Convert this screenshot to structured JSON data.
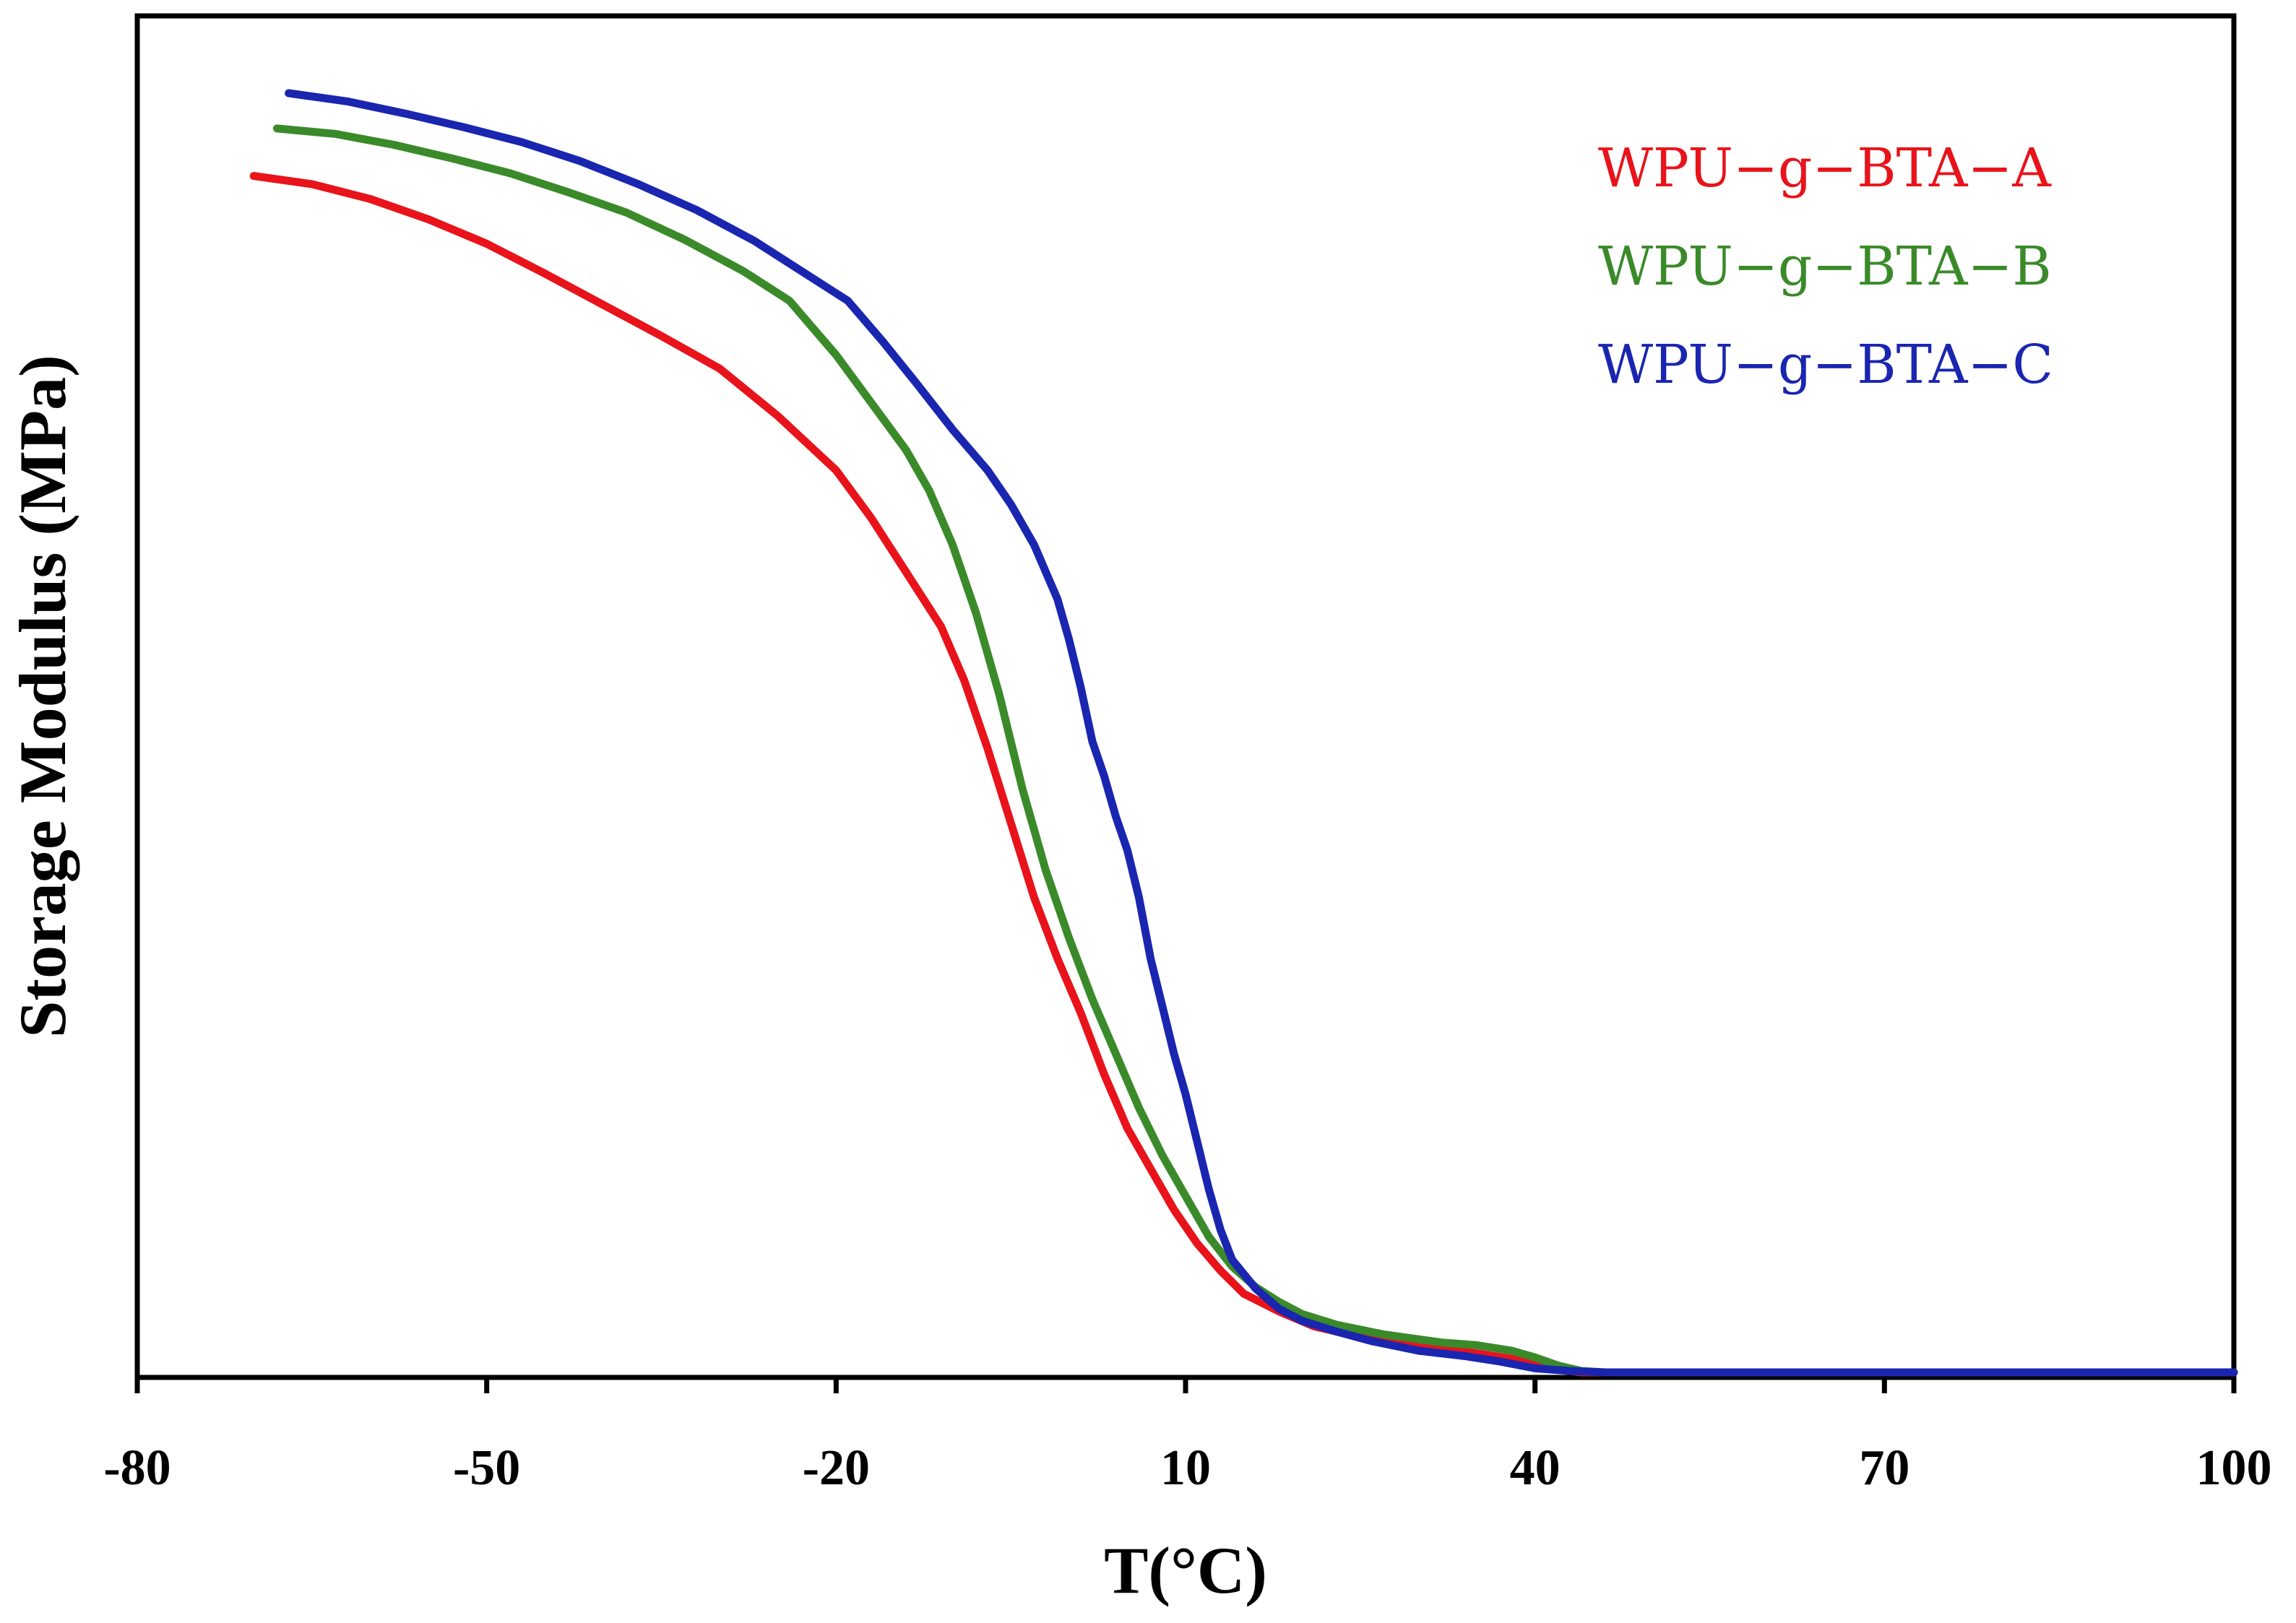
{
  "chart_data": {
    "type": "line",
    "title": "",
    "xlabel": "T(°C)",
    "ylabel": "Storage Modulus (MPa)",
    "xlim": [
      -80,
      100
    ],
    "ylim": [
      0,
      100
    ],
    "xticks": [
      -80,
      -50,
      -20,
      10,
      40,
      70,
      100
    ],
    "xtick_labels": [
      "-80",
      "-50",
      "-20",
      "10",
      "40",
      "70",
      "100"
    ],
    "y_tick_labels_shown": false,
    "grid": false,
    "legend_position": "top-right",
    "series": [
      {
        "name": "WPU−g−BTA−A",
        "color": "#e8131b",
        "points": [
          [
            -70,
            88.2
          ],
          [
            -65,
            87.6
          ],
          [
            -60,
            86.5
          ],
          [
            -55,
            85.0
          ],
          [
            -50,
            83.2
          ],
          [
            -45,
            81.0
          ],
          [
            -40,
            78.7
          ],
          [
            -35,
            76.4
          ],
          [
            -30,
            74.0
          ],
          [
            -25,
            70.5
          ],
          [
            -20,
            66.5
          ],
          [
            -17,
            63.0
          ],
          [
            -14,
            59.0
          ],
          [
            -11,
            55.0
          ],
          [
            -9,
            51.0
          ],
          [
            -7,
            46.0
          ],
          [
            -5,
            40.5
          ],
          [
            -3,
            35.0
          ],
          [
            -1,
            30.5
          ],
          [
            1,
            26.5
          ],
          [
            3,
            22.0
          ],
          [
            5,
            18.0
          ],
          [
            7,
            15.0
          ],
          [
            9,
            12.0
          ],
          [
            11,
            9.5
          ],
          [
            13,
            7.5
          ],
          [
            15,
            5.8
          ],
          [
            18,
            4.5
          ],
          [
            21,
            3.4
          ],
          [
            25,
            2.6
          ],
          [
            30,
            1.9
          ],
          [
            35,
            1.4
          ],
          [
            38,
            1.0
          ],
          [
            40,
            0.6
          ],
          [
            42,
            0.2
          ],
          [
            44,
            0.0
          ],
          [
            60,
            0.0
          ],
          [
            80,
            0.0
          ],
          [
            100,
            0.0
          ]
        ]
      },
      {
        "name": "WPU−g−BTA−B",
        "color": "#3a8a2a",
        "points": [
          [
            -68,
            91.7
          ],
          [
            -63,
            91.3
          ],
          [
            -58,
            90.5
          ],
          [
            -53,
            89.5
          ],
          [
            -48,
            88.4
          ],
          [
            -43,
            87.0
          ],
          [
            -38,
            85.5
          ],
          [
            -33,
            83.5
          ],
          [
            -28,
            81.2
          ],
          [
            -24,
            79.0
          ],
          [
            -20,
            75.0
          ],
          [
            -17,
            71.5
          ],
          [
            -14,
            68.0
          ],
          [
            -12,
            65.0
          ],
          [
            -10,
            61.0
          ],
          [
            -8,
            56.0
          ],
          [
            -6,
            50.0
          ],
          [
            -4,
            43.0
          ],
          [
            -2,
            37.0
          ],
          [
            0,
            32.0
          ],
          [
            2,
            27.5
          ],
          [
            4,
            23.5
          ],
          [
            6,
            19.5
          ],
          [
            8,
            16.0
          ],
          [
            10,
            13.0
          ],
          [
            12,
            10.0
          ],
          [
            14,
            7.8
          ],
          [
            16,
            6.3
          ],
          [
            18,
            5.2
          ],
          [
            20,
            4.3
          ],
          [
            23,
            3.5
          ],
          [
            27,
            2.8
          ],
          [
            32,
            2.2
          ],
          [
            35,
            2.0
          ],
          [
            38,
            1.6
          ],
          [
            40,
            1.1
          ],
          [
            42,
            0.5
          ],
          [
            44,
            0.1
          ],
          [
            46,
            0.0
          ],
          [
            60,
            0.0
          ],
          [
            80,
            0.0
          ],
          [
            100,
            0.0
          ]
        ]
      },
      {
        "name": "WPU−g−BTA−C",
        "color": "#1a25b0",
        "points": [
          [
            -67,
            94.3
          ],
          [
            -62,
            93.7
          ],
          [
            -57,
            92.8
          ],
          [
            -52,
            91.8
          ],
          [
            -47,
            90.7
          ],
          [
            -42,
            89.3
          ],
          [
            -37,
            87.6
          ],
          [
            -32,
            85.7
          ],
          [
            -27,
            83.4
          ],
          [
            -23,
            81.2
          ],
          [
            -19,
            79.0
          ],
          [
            -16,
            76.0
          ],
          [
            -13,
            72.8
          ],
          [
            -10,
            69.5
          ],
          [
            -7,
            66.5
          ],
          [
            -5,
            64.0
          ],
          [
            -3,
            61.0
          ],
          [
            -1,
            57.0
          ],
          [
            0,
            54.0
          ],
          [
            1,
            50.5
          ],
          [
            2,
            46.5
          ],
          [
            3,
            44.0
          ],
          [
            4,
            41.0
          ],
          [
            5,
            38.5
          ],
          [
            6,
            35.0
          ],
          [
            7,
            30.5
          ],
          [
            8,
            27.0
          ],
          [
            9,
            23.5
          ],
          [
            10,
            20.5
          ],
          [
            11,
            17.0
          ],
          [
            12,
            13.5
          ],
          [
            13,
            10.5
          ],
          [
            14,
            8.3
          ],
          [
            16,
            6.2
          ],
          [
            18,
            4.7
          ],
          [
            20,
            3.8
          ],
          [
            23,
            3.0
          ],
          [
            26,
            2.3
          ],
          [
            30,
            1.6
          ],
          [
            34,
            1.2
          ],
          [
            37,
            0.8
          ],
          [
            40,
            0.3
          ],
          [
            43,
            0.1
          ],
          [
            46,
            0.0
          ],
          [
            60,
            0.0
          ],
          [
            80,
            0.0
          ],
          [
            100,
            0.0
          ]
        ]
      }
    ]
  }
}
